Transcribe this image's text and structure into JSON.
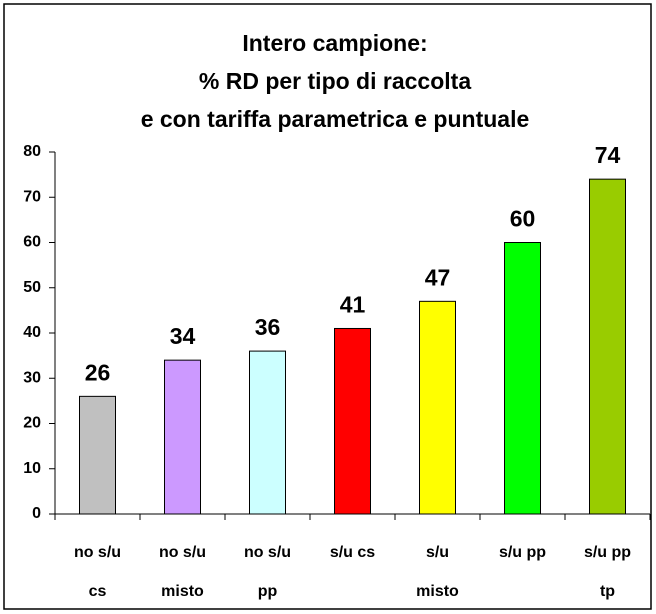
{
  "chart_data": {
    "type": "bar",
    "title": [
      "Intero campione:",
      "% RD per tipo di raccolta",
      "e con tariffa parametrica e puntuale"
    ],
    "categories": [
      [
        "no s/u",
        "cs"
      ],
      [
        "no s/u",
        "misto"
      ],
      [
        "no s/u",
        "pp"
      ],
      [
        "s/u cs"
      ],
      [
        "s/u",
        "misto"
      ],
      [
        "s/u pp"
      ],
      [
        "s/u pp",
        "tp"
      ]
    ],
    "values": [
      26,
      34,
      36,
      41,
      47,
      60,
      74
    ],
    "colors": [
      "#c0c0c0",
      "#cc99ff",
      "#ccffff",
      "#ff0000",
      "#ffff00",
      "#00ff00",
      "#99cc00"
    ],
    "ylim": [
      0,
      80
    ],
    "yticks": [
      0,
      10,
      20,
      30,
      40,
      50,
      60,
      70,
      80
    ],
    "grid": false
  }
}
